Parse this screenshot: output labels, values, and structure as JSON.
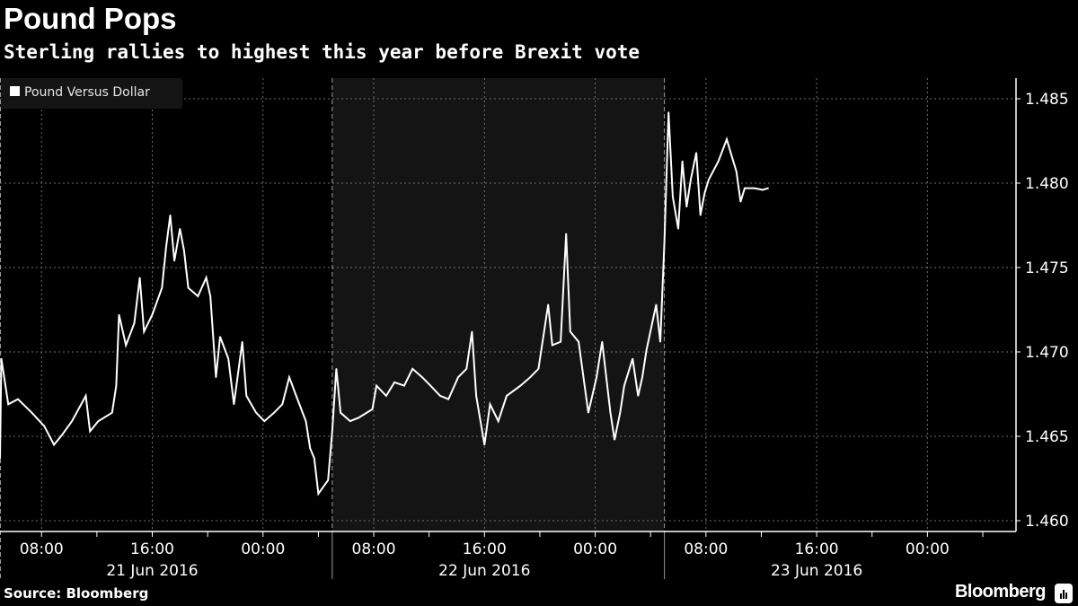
{
  "title": "Pound Pops",
  "subtitle": "Sterling rallies to highest this year before Brexit vote",
  "source": "Source: Bloomberg",
  "brand": "Bloomberg",
  "colors": {
    "background": "#000000",
    "line": "#ffffff",
    "shade": "#141414",
    "grid": "#6e6e6e"
  },
  "chart_data": {
    "type": "line",
    "title": "Pound Pops",
    "xlabel": "",
    "ylabel": "",
    "x_unit": "hours since 21 Jun 2016 05:00",
    "xlim": [
      0,
      73.4
    ],
    "ylim": [
      1.4594,
      1.4864
    ],
    "y_ticks": [
      1.46,
      1.465,
      1.47,
      1.475,
      1.48,
      1.485
    ],
    "y_tick_labels": [
      "1.460",
      "1.465",
      "1.470",
      "1.475",
      "1.480",
      "1.485"
    ],
    "x_ticks": [
      3,
      11,
      19,
      27,
      35,
      43,
      51,
      59,
      67
    ],
    "x_tick_labels": [
      "08:00",
      "16:00",
      "00:00",
      "08:00",
      "16:00",
      "00:00",
      "08:00",
      "16:00",
      "00:00"
    ],
    "day_labels": [
      {
        "label": "21 Jun 2016",
        "x": 11
      },
      {
        "label": "22 Jun 2016",
        "x": 35
      },
      {
        "label": "23 Jun 2016",
        "x": 59
      }
    ],
    "day_separators": [
      24,
      48
    ],
    "shaded_range": [
      24,
      48
    ],
    "grid": true,
    "legend": {
      "position": "top-left",
      "entries": [
        "Pound Versus Dollar"
      ]
    },
    "series": [
      {
        "name": "Pound Versus Dollar",
        "x": [
          0,
          0.1,
          0.6,
          1.3,
          2.3,
          3.2,
          3.9,
          4.5,
          5.2,
          6.2,
          6.5,
          7.1,
          8.1,
          8.4,
          8.6,
          9.1,
          9.7,
          10.1,
          10.4,
          11.0,
          11.7,
          12.0,
          12.3,
          12.6,
          13.0,
          13.3,
          13.6,
          14.3,
          14.9,
          15.2,
          15.6,
          15.9,
          16.5,
          16.9,
          17.5,
          17.8,
          18.5,
          19.1,
          19.8,
          20.4,
          20.9,
          21.4,
          22.1,
          22.4,
          22.7,
          23.0,
          23.7,
          24.0,
          24.3,
          24.6,
          25.3,
          25.9,
          26.9,
          27.2,
          27.9,
          28.5,
          29.2,
          29.8,
          30.5,
          31.1,
          31.8,
          32.4,
          33.1,
          33.7,
          34.1,
          34.4,
          35.0,
          35.4,
          36.0,
          36.6,
          37.6,
          38.3,
          38.9,
          39.6,
          39.9,
          40.5,
          40.9,
          41.2,
          41.8,
          42.5,
          43.1,
          43.5,
          44.1,
          44.4,
          44.8,
          45.1,
          45.7,
          46.1,
          46.4,
          46.7,
          47.4,
          47.7,
          48.0,
          48.3,
          48.6,
          49.0,
          49.3,
          49.6,
          49.9,
          50.3,
          50.6,
          50.9,
          51.2,
          51.9,
          52.5,
          52.9,
          53.2,
          53.5,
          53.8,
          54.5,
          55.1,
          55.5
        ],
        "values": [
          1.4637,
          1.4696,
          1.4669,
          1.4672,
          1.4664,
          1.4656,
          1.4645,
          1.4651,
          1.4659,
          1.4674,
          1.4653,
          1.4659,
          1.4664,
          1.468,
          1.4722,
          1.4704,
          1.4717,
          1.4744,
          1.4712,
          1.4722,
          1.4738,
          1.4762,
          1.4781,
          1.4754,
          1.4773,
          1.476,
          1.4738,
          1.4733,
          1.4744,
          1.4733,
          1.4685,
          1.4709,
          1.4696,
          1.4669,
          1.4706,
          1.4674,
          1.4664,
          1.4659,
          1.4664,
          1.4669,
          1.4685,
          1.4674,
          1.4659,
          1.4643,
          1.4637,
          1.4616,
          1.4624,
          1.4653,
          1.469,
          1.4664,
          1.4659,
          1.4661,
          1.4666,
          1.468,
          1.4674,
          1.4682,
          1.468,
          1.469,
          1.4685,
          1.468,
          1.4674,
          1.4672,
          1.4685,
          1.469,
          1.4712,
          1.4674,
          1.4645,
          1.4669,
          1.4659,
          1.4674,
          1.468,
          1.4685,
          1.469,
          1.4728,
          1.4704,
          1.4706,
          1.477,
          1.4712,
          1.4706,
          1.4664,
          1.4685,
          1.4706,
          1.4664,
          1.4648,
          1.4664,
          1.468,
          1.4696,
          1.4674,
          1.4685,
          1.4701,
          1.4728,
          1.4706,
          1.4765,
          1.4842,
          1.4792,
          1.4773,
          1.4813,
          1.4786,
          1.4802,
          1.4818,
          1.4781,
          1.4794,
          1.4802,
          1.4813,
          1.4826,
          1.4815,
          1.4807,
          1.4789,
          1.4797,
          1.4797,
          1.4796,
          1.4797
        ]
      }
    ]
  }
}
